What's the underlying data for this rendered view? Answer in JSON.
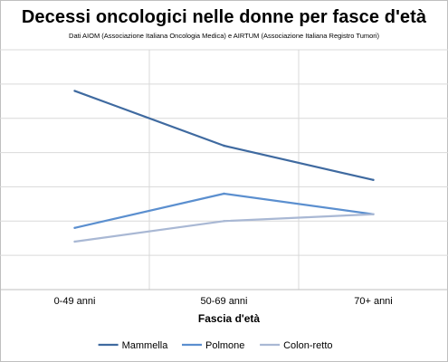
{
  "chart_data": {
    "type": "line",
    "title": "Decessi oncologici nelle donne per fasce d'età",
    "subtitle": "Dati AIOM (Associazione Italiana Oncologia Medica) e AIRTUM (Associazione Italiana Registro Tumori)",
    "xlabel": "Fascia d'età",
    "ylabel": "",
    "categories": [
      "0-49 anni",
      "50-69 anni",
      "70+ anni"
    ],
    "y_tick_count": 8,
    "ylim": [
      0,
      7
    ],
    "grid": true,
    "legend_position": "bottom",
    "series": [
      {
        "name": "Mammella",
        "values": [
          5.8,
          4.2,
          3.2
        ],
        "color": "#3f6aa0"
      },
      {
        "name": "Polmone",
        "values": [
          1.8,
          2.8,
          2.2
        ],
        "color": "#5b8fcf"
      },
      {
        "name": "Colon-retto",
        "values": [
          1.4,
          2.0,
          2.2
        ],
        "color": "#a9b8d4"
      }
    ]
  }
}
